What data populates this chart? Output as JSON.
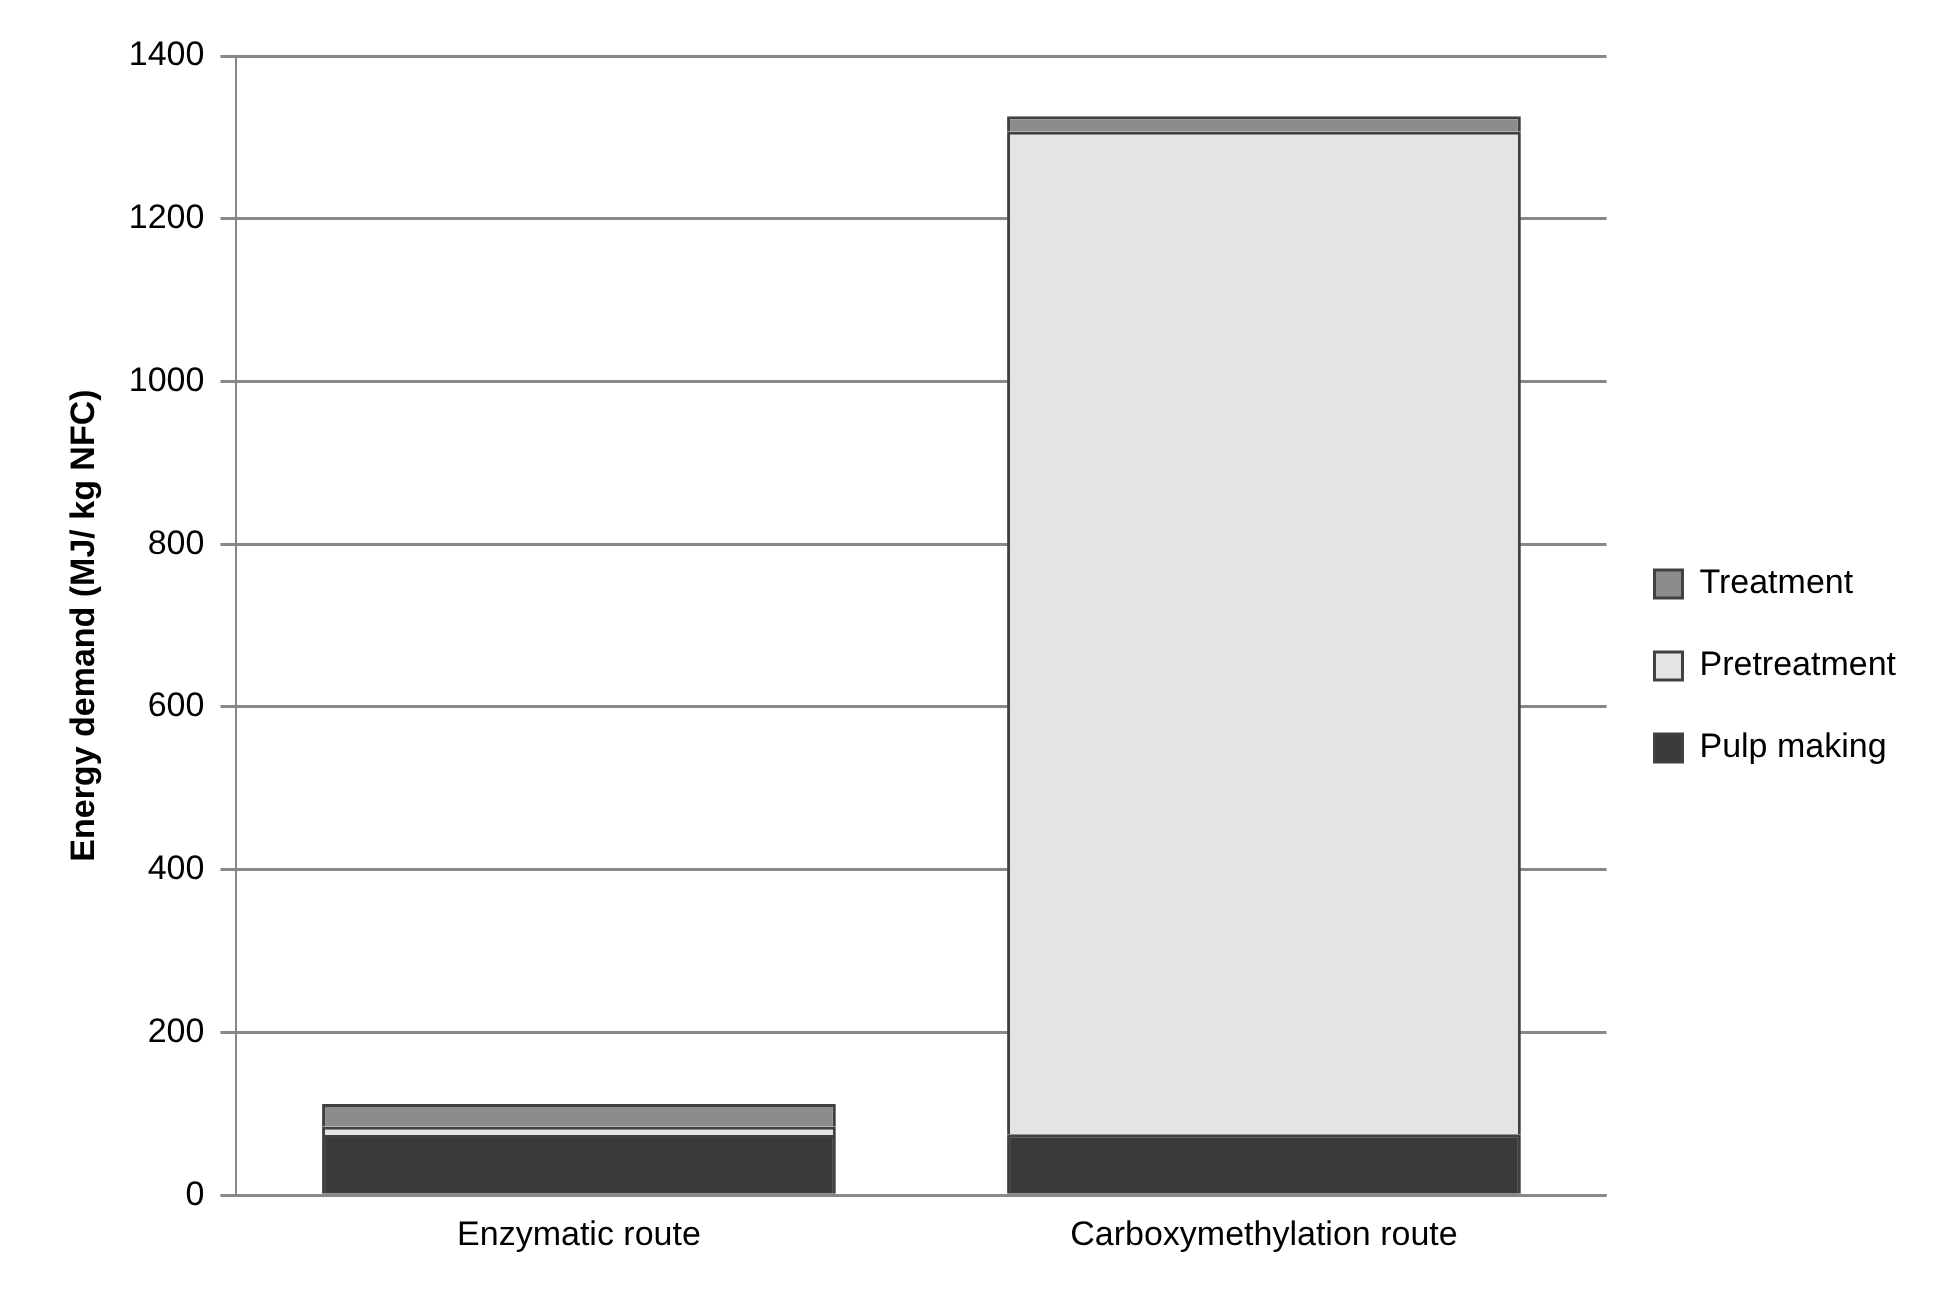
{
  "chart_data": {
    "type": "bar",
    "ylabel": "Energy demand (MJ/ kg NFC)",
    "categories": [
      "Enzymatic route",
      "Carboxymethylation route"
    ],
    "stacked": true,
    "series": [
      {
        "name": "Pulp making",
        "color": "#3a3a3a",
        "values": [
          74,
          75
        ]
      },
      {
        "name": "Pretreatment",
        "color": "#e4e4e4",
        "values": [
          10,
          1232
        ]
      },
      {
        "name": "Treatment",
        "color": "#8c8c8c",
        "values": [
          28,
          19
        ]
      }
    ],
    "ylim": [
      0,
      1400
    ],
    "yticks": [
      0,
      200,
      400,
      600,
      800,
      1000,
      1200,
      1400
    ],
    "grid": "y",
    "legend": "right"
  }
}
